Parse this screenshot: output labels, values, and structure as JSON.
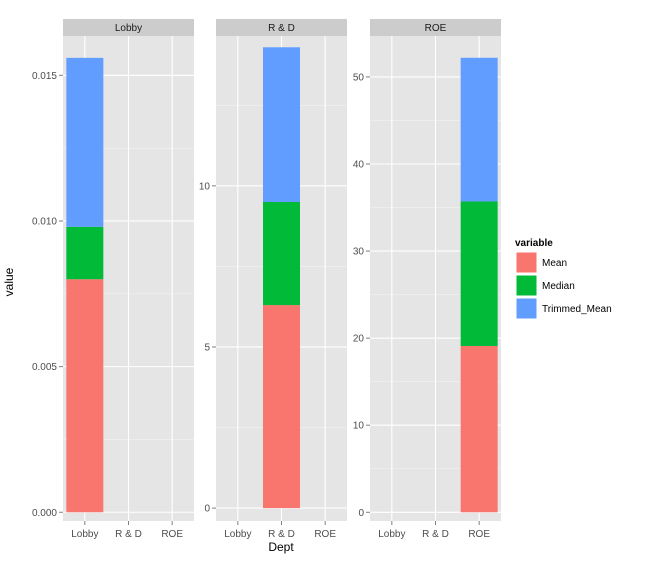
{
  "chart_data": {
    "type": "bar",
    "stacked": true,
    "facet_by": "Dept",
    "xlabel": "Dept",
    "ylabel": "value",
    "categories": [
      "Lobby",
      "R & D",
      "ROE"
    ],
    "legend": {
      "title": "variable",
      "position": "right",
      "entries": [
        "Mean",
        "Median",
        "Trimmed_Mean"
      ]
    },
    "colors": {
      "Mean": "#F8766D",
      "Median": "#00BA38",
      "Trimmed_Mean": "#619CFF",
      "panel_bg": "#E5E5E5",
      "strip_bg": "#CCCCCC",
      "grid_major": "#FFFFFF",
      "grid_minor": "#F2F2F2"
    },
    "grid": true,
    "panels": [
      {
        "strip": "Lobby",
        "ylim": [
          -0.0003,
          0.01635
        ],
        "yticks": [
          0,
          0.005,
          0.01,
          0.015
        ],
        "ytick_labels": [
          "0.000",
          "0.005",
          "0.010",
          "0.015"
        ],
        "bars": [
          {
            "category": "Lobby",
            "Mean": 0.008,
            "Median": 0.0018,
            "Trimmed_Mean": 0.0058
          }
        ]
      },
      {
        "strip": "R & D",
        "ylim": [
          -0.4,
          14.65
        ],
        "yticks": [
          0,
          5,
          10
        ],
        "ytick_labels": [
          "0",
          "5",
          "10"
        ],
        "bars": [
          {
            "category": "R & D",
            "Mean": 6.3,
            "Median": 3.2,
            "Trimmed_Mean": 4.8
          }
        ]
      },
      {
        "strip": "ROE",
        "ylim": [
          -1.0,
          54.7
        ],
        "yticks": [
          0,
          10,
          20,
          30,
          40,
          50
        ],
        "ytick_labels": [
          "0",
          "10",
          "20",
          "30",
          "40",
          "50"
        ],
        "bars": [
          {
            "category": "ROE",
            "Mean": 19.1,
            "Median": 16.6,
            "Trimmed_Mean": 16.5
          }
        ]
      }
    ]
  }
}
